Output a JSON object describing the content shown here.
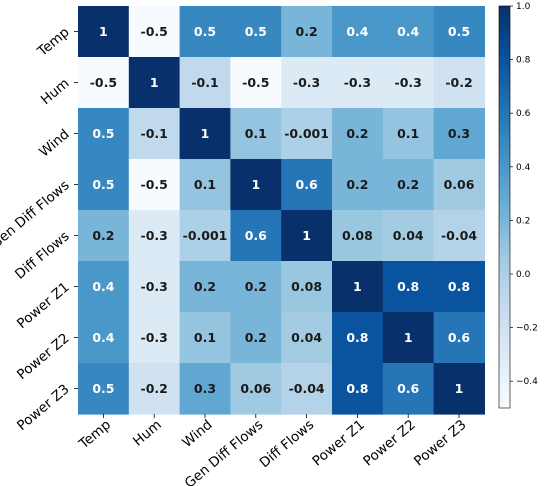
{
  "chart_data": {
    "type": "heatmap",
    "title": "",
    "xlabel": "",
    "ylabel": "",
    "x_labels": [
      "Temp",
      "Hum",
      "Wind",
      "Gen Diff Flows",
      "Diff Flows",
      "Power Z1",
      "Power Z2",
      "Power Z3"
    ],
    "y_labels": [
      "Temp",
      "Hum",
      "Wind",
      "Gen Diff Flows",
      "Diff Flows",
      "Power Z1",
      "Power Z2",
      "Power Z3"
    ],
    "matrix": [
      [
        1,
        -0.5,
        0.5,
        0.5,
        0.2,
        0.4,
        0.4,
        0.5
      ],
      [
        -0.5,
        1,
        -0.1,
        -0.5,
        -0.3,
        -0.3,
        -0.3,
        -0.2
      ],
      [
        0.5,
        -0.1,
        1,
        0.1,
        -0.001,
        0.2,
        0.1,
        0.3
      ],
      [
        0.5,
        -0.5,
        0.1,
        1,
        0.6,
        0.2,
        0.2,
        0.06
      ],
      [
        0.2,
        -0.3,
        -0.001,
        0.6,
        1,
        0.08,
        0.04,
        -0.04
      ],
      [
        0.4,
        -0.3,
        0.2,
        0.2,
        0.08,
        1,
        0.8,
        0.8
      ],
      [
        0.4,
        -0.3,
        0.1,
        0.2,
        0.04,
        0.8,
        1,
        0.6
      ],
      [
        0.5,
        -0.2,
        0.3,
        0.06,
        -0.04,
        0.8,
        0.6,
        1
      ]
    ],
    "annotations": [
      [
        "1",
        "-0.5",
        "0.5",
        "0.5",
        "0.2",
        "0.4",
        "0.4",
        "0.5"
      ],
      [
        "-0.5",
        "1",
        "-0.1",
        "-0.5",
        "-0.3",
        "-0.3",
        "-0.3",
        "-0.2"
      ],
      [
        "0.5",
        "-0.1",
        "1",
        "0.1",
        "-0.001",
        "0.2",
        "0.1",
        "0.3"
      ],
      [
        "0.5",
        "-0.5",
        "0.1",
        "1",
        "0.6",
        "0.2",
        "0.2",
        "0.06"
      ],
      [
        "0.2",
        "-0.3",
        "-0.001",
        "0.6",
        "1",
        "0.08",
        "0.04",
        "-0.04"
      ],
      [
        "0.4",
        "-0.3",
        "0.2",
        "0.2",
        "0.08",
        "1",
        "0.8",
        "0.8"
      ],
      [
        "0.4",
        "-0.3",
        "0.1",
        "0.2",
        "0.04",
        "0.8",
        "1",
        "0.6"
      ],
      [
        "0.5",
        "-0.2",
        "0.3",
        "0.06",
        "-0.04",
        "0.8",
        "0.6",
        "1"
      ]
    ],
    "colormap": "Blues",
    "vmin": -0.5,
    "vmax": 1.0,
    "colorbar_ticks": [
      1.0,
      0.8,
      0.6,
      0.4,
      0.2,
      0.0,
      -0.2,
      -0.4
    ],
    "colorbar_tick_labels": [
      "1.0",
      "0.8",
      "0.6",
      "0.4",
      "0.2",
      "0.0",
      "−0.2",
      "−0.4"
    ],
    "grid": false,
    "legend": "colorbar-right"
  }
}
